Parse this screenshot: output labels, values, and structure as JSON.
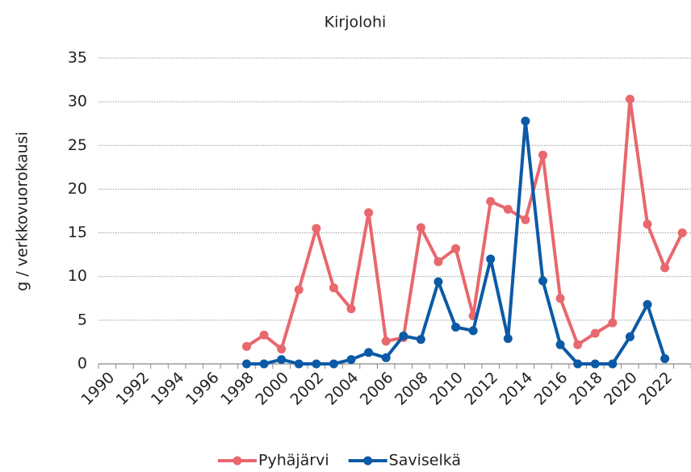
{
  "chart_data": {
    "type": "line",
    "title": "Kirjolohi",
    "y_label": "g / verkkovuorokausi",
    "categories": [
      "1990",
      null,
      "1992",
      null,
      "1994",
      null,
      "1996",
      null,
      "1998",
      null,
      "2000",
      null,
      "2002",
      null,
      "2004",
      null,
      "2006",
      null,
      "2008",
      null,
      "2010",
      null,
      "2012",
      null,
      "2014",
      null,
      "2016",
      null,
      "2018",
      null,
      "2020",
      null,
      "2022",
      null
    ],
    "series": [
      {
        "name": "Pyhäjärvi",
        "color": "#e8686d",
        "values": [
          null,
          null,
          null,
          null,
          null,
          null,
          null,
          null,
          2.0,
          3.3,
          1.7,
          8.5,
          15.5,
          8.7,
          6.3,
          17.3,
          2.6,
          3.0,
          15.6,
          11.7,
          13.2,
          5.5,
          18.6,
          17.7,
          16.5,
          23.9,
          7.5,
          2.2,
          3.5,
          4.7,
          30.3,
          16.0,
          11.0,
          15.0
        ]
      },
      {
        "name": "Saviselkä",
        "color": "#0c5aa6",
        "values": [
          null,
          null,
          null,
          null,
          null,
          null,
          null,
          null,
          0,
          0,
          0.5,
          0,
          0,
          0,
          0.5,
          1.3,
          0.7,
          3.2,
          2.8,
          9.4,
          4.2,
          3.8,
          12.0,
          2.9,
          27.8,
          9.5,
          2.2,
          0,
          0,
          0,
          3.1,
          6.8,
          0.6,
          null
        ]
      }
    ],
    "ylim": [
      0,
      35
    ],
    "yticks": [
      0,
      5,
      10,
      15,
      20,
      25,
      30,
      35
    ],
    "grid": true,
    "legend": "bottom"
  }
}
